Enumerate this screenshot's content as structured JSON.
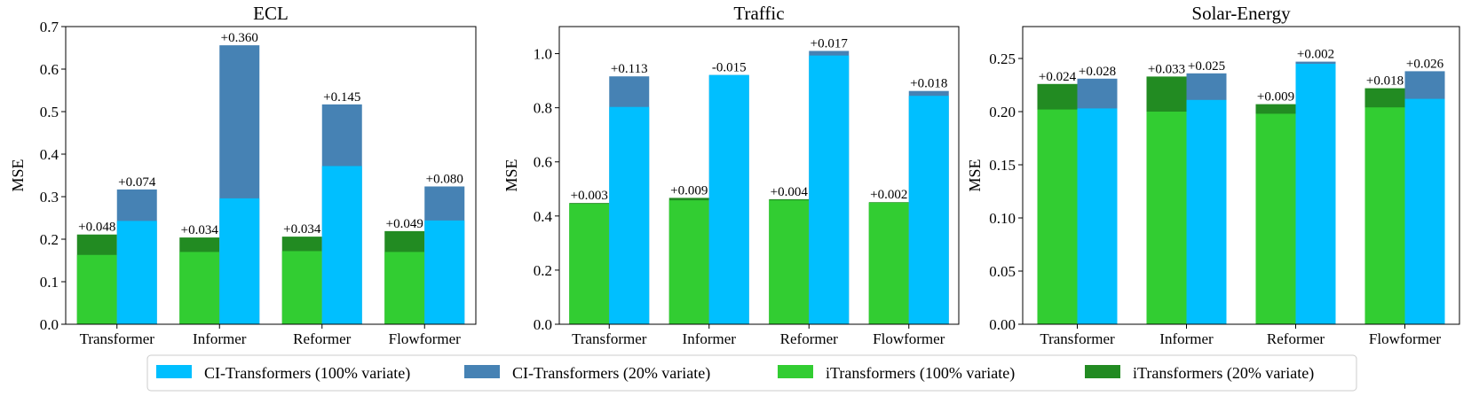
{
  "colors": {
    "ci_full": "#00BFFF",
    "ci_reduced": "#4682B4",
    "it_full": "#32CD32",
    "it_reduced": "#228B22"
  },
  "legend": [
    {
      "label": "CI-Transformers (100% variate)",
      "color": "#00BFFF"
    },
    {
      "label": "CI-Transformers (20% variate)",
      "color": "#4682B4"
    },
    {
      "label": "iTransformers (100% variate)",
      "color": "#32CD32"
    },
    {
      "label": "iTransformers (20% variate)",
      "color": "#228B22"
    }
  ],
  "chart_data": [
    {
      "type": "bar",
      "title": "ECL",
      "ylabel": "MSE",
      "ylim": [
        0,
        0.7
      ],
      "yticks": [
        0,
        0.1,
        0.2,
        0.3,
        0.4,
        0.5,
        0.6,
        0.7
      ],
      "ytick_labels": [
        "0.0",
        "0.1",
        "0.2",
        "0.3",
        "0.4",
        "0.5",
        "0.6",
        "0.7"
      ],
      "categories": [
        "Transformer",
        "Informer",
        "Reformer",
        "Flowformer"
      ],
      "series": [
        {
          "name": "iTransformers (100% variate)",
          "values": [
            0.163,
            0.17,
            0.172,
            0.17
          ]
        },
        {
          "name": "iTransformers (20% variate)",
          "values": [
            0.211,
            0.204,
            0.206,
            0.219
          ]
        },
        {
          "name": "CI-Transformers (100% variate)",
          "values": [
            0.243,
            0.296,
            0.372,
            0.244
          ]
        },
        {
          "name": "CI-Transformers (20% variate)",
          "values": [
            0.317,
            0.656,
            0.517,
            0.324
          ]
        }
      ],
      "annotations": {
        "itransformers": [
          "+0.048",
          "+0.034",
          "+0.034",
          "+0.049"
        ],
        "ci_transformers": [
          "+0.074",
          "+0.360",
          "+0.145",
          "+0.080"
        ]
      }
    },
    {
      "type": "bar",
      "title": "Traffic",
      "ylabel": "MSE",
      "ylim": [
        0,
        1.1
      ],
      "yticks": [
        0,
        0.2,
        0.4,
        0.6,
        0.8,
        1.0
      ],
      "ytick_labels": [
        "0.0",
        "0.2",
        "0.4",
        "0.6",
        "0.8",
        "1.0"
      ],
      "categories": [
        "Transformer",
        "Informer",
        "Reformer",
        "Flowformer"
      ],
      "series": [
        {
          "name": "iTransformers (100% variate)",
          "values": [
            0.445,
            0.458,
            0.458,
            0.449
          ]
        },
        {
          "name": "iTransformers (20% variate)",
          "values": [
            0.448,
            0.467,
            0.462,
            0.451
          ]
        },
        {
          "name": "CI-Transformers (100% variate)",
          "values": [
            0.803,
            0.921,
            0.993,
            0.844
          ]
        },
        {
          "name": "CI-Transformers (20% variate)",
          "values": [
            0.916,
            0.906,
            1.01,
            0.862
          ]
        }
      ],
      "annotations": {
        "itransformers": [
          "+0.003",
          "+0.009",
          "+0.004",
          "+0.002"
        ],
        "ci_transformers": [
          "+0.113",
          "-0.015",
          "+0.017",
          "+0.018"
        ]
      }
    },
    {
      "type": "bar",
      "title": "Solar-Energy",
      "ylabel": "MSE",
      "ylim": [
        0,
        0.28
      ],
      "yticks": [
        0,
        0.05,
        0.1,
        0.15,
        0.2,
        0.25
      ],
      "ytick_labels": [
        "0.00",
        "0.05",
        "0.10",
        "0.15",
        "0.20",
        "0.25"
      ],
      "categories": [
        "Transformer",
        "Informer",
        "Reformer",
        "Flowformer"
      ],
      "series": [
        {
          "name": "iTransformers (100% variate)",
          "values": [
            0.202,
            0.2,
            0.198,
            0.204
          ]
        },
        {
          "name": "iTransformers (20% variate)",
          "values": [
            0.226,
            0.233,
            0.207,
            0.222
          ]
        },
        {
          "name": "CI-Transformers (100% variate)",
          "values": [
            0.203,
            0.211,
            0.245,
            0.212
          ]
        },
        {
          "name": "CI-Transformers (20% variate)",
          "values": [
            0.231,
            0.236,
            0.247,
            0.238
          ]
        }
      ],
      "annotations": {
        "itransformers": [
          "+0.024",
          "+0.033",
          "+0.009",
          "+0.018"
        ],
        "ci_transformers": [
          "+0.028",
          "+0.025",
          "+0.002",
          "+0.026"
        ]
      }
    }
  ]
}
